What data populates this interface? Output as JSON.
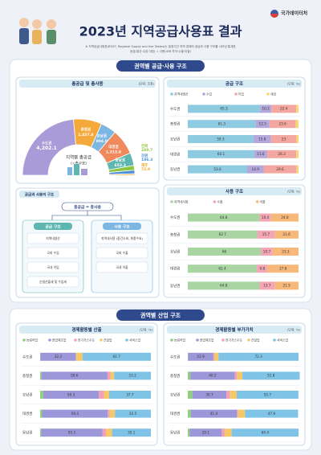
{
  "header": {
    "title": "2023년 지역공급사용표 결과",
    "org": "국가데이터처",
    "notes": [
      "※ 지역공급사용표(RSUT, Regional Supply and Use Tables)는 일정기간 지역 경제의 공급과 사용 구조를 나타낸 통계표",
      "공급(생산·수입·이입) = 사용(소비·투자·수출·이출)"
    ]
  },
  "sections": [
    {
      "title": "권역별 공급·사용 구조"
    },
    {
      "title": "권역별 산업 구조"
    }
  ],
  "diagram": {
    "title": "공급과 사용의 구조",
    "top": "총공급 = 총사용",
    "left": {
      "title": "공급 구조",
      "items": [
        "지역내생산",
        "국외 수입",
        "국내 이입",
        "순생산물세 및 수입세"
      ]
    },
    "right": {
      "title": "사용 구조",
      "items": [
        "지역내사용 (중간소비, 최종수요)",
        "국외 수출",
        "국내 이출"
      ]
    }
  },
  "chart_data": [
    {
      "type": "pie",
      "title": "총공급 및 총사용",
      "unit": "(단위: 조원)",
      "center_text": [
        "지역별 총공급",
        "(=총사용)"
      ],
      "categories": [
        "수도권",
        "충청권",
        "호남권",
        "대경권",
        "동남권",
        "전북",
        "강원",
        "제주"
      ],
      "values": [
        4202.1,
        1457.4,
        804.0,
        1313.8,
        653.3,
        240.7,
        186.3,
        72.9
      ],
      "value_labels": [
        "4,202.1",
        "1,457.4",
        "804.0",
        "1,313.8",
        "653.3",
        "240.7",
        "186.3",
        "72.9"
      ],
      "colors": [
        "#a99ad8",
        "#f6a93b",
        "#7cb6e3",
        "#f08a5d",
        "#5db7b0",
        "#8cc63f",
        "#4a90d9",
        "#f5a623"
      ]
    },
    {
      "type": "bar",
      "stacked": true,
      "orientation": "horizontal",
      "title": "공급 구조",
      "unit": "(단위: %)",
      "xlim": [
        0,
        100
      ],
      "categories": [
        "수도권",
        "충청권",
        "호남권",
        "대경권",
        "동남권"
      ],
      "series": [
        {
          "name": "지역내생산",
          "color": "#8ecae0",
          "values": [
            65.3,
            61.3,
            59.3,
            60.1,
            53.6
          ]
        },
        {
          "name": "수입",
          "color": "#b4a7dc",
          "values": [
            10.2,
            12.5,
            15.8,
            11.6,
            14.9
          ]
        },
        {
          "name": "이입",
          "color": "#f4a6a0",
          "values": [
            22.4,
            23.6,
            23.0,
            26.3,
            29.6
          ]
        },
        {
          "name": "세금",
          "color": "#f7d774",
          "values": [
            2.1,
            2.6,
            1.9,
            2.0,
            1.9
          ]
        }
      ]
    },
    {
      "type": "bar",
      "stacked": true,
      "orientation": "horizontal",
      "title": "사용 구조",
      "unit": "(단위: %)",
      "xlim": [
        0,
        100
      ],
      "categories": [
        "수도권",
        "충청권",
        "호남권",
        "대경권",
        "동남권"
      ],
      "series": [
        {
          "name": "지역내사용",
          "color": "#a8d5a2",
          "values": [
            64.8,
            62.7,
            66.0,
            62.4,
            64.8
          ]
        },
        {
          "name": "수출",
          "color": "#f4a6b4",
          "values": [
            10.4,
            15.7,
            10.7,
            9.8,
            13.7
          ]
        },
        {
          "name": "이출",
          "color": "#f7b97a",
          "values": [
            24.8,
            21.6,
            23.3,
            27.8,
            21.5
          ]
        }
      ]
    },
    {
      "type": "bar",
      "stacked": true,
      "orientation": "horizontal",
      "title": "경제활동별 산출",
      "unit": "(단위: %)",
      "xlim": [
        0,
        100
      ],
      "categories": [
        "수도권",
        "충청권",
        "호남권",
        "대경권",
        "동남권"
      ],
      "series": [
        {
          "name": "농림어업",
          "color": "#8fcf7f",
          "values": [
            0.2,
            1.2,
            2.8,
            1.8,
            0.9
          ]
        },
        {
          "name": "광업제조업",
          "color": "#9b97d9",
          "values": [
            32.2,
            59.6,
            50.3,
            59.3,
            55.3
          ]
        },
        {
          "name": "전기가스수도",
          "color": "#f2a0b8",
          "values": [
            0.1,
            2.6,
            4.6,
            1.6,
            3.2
          ]
        },
        {
          "name": "건설업",
          "color": "#f5c86a",
          "values": [
            5.8,
            3.4,
            4.6,
            4.8,
            5.5
          ]
        },
        {
          "name": "서비스업",
          "color": "#7fc4e6",
          "values": [
            61.7,
            33.2,
            37.7,
            32.5,
            35.1
          ]
        }
      ]
    },
    {
      "type": "bar",
      "stacked": true,
      "orientation": "horizontal",
      "title": "경제활동별 부가가치",
      "unit": "(단위: %)",
      "xlim": [
        0,
        100
      ],
      "categories": [
        "수도권",
        "충청권",
        "호남권",
        "대경권",
        "동남권"
      ],
      "series": [
        {
          "name": "농림어업",
          "color": "#8fcf7f",
          "values": [
            0.2,
            2.3,
            4.2,
            2.8,
            1.6
          ]
        },
        {
          "name": "광업제조업",
          "color": "#9b97d9",
          "values": [
            22.9,
            40.2,
            30.7,
            41.4,
            29.1
          ]
        },
        {
          "name": "전기가스수도",
          "color": "#f2a0b8",
          "values": [
            1.1,
            2.0,
            3.0,
            1.2,
            2.6
          ]
        },
        {
          "name": "건설업",
          "color": "#f5c86a",
          "values": [
            3.5,
            4.8,
            6.3,
            6.3,
            6.3
          ]
        },
        {
          "name": "서비스업",
          "color": "#7fc4e6",
          "values": [
            72.3,
            51.8,
            55.7,
            47.9,
            60.4
          ]
        }
      ]
    }
  ]
}
